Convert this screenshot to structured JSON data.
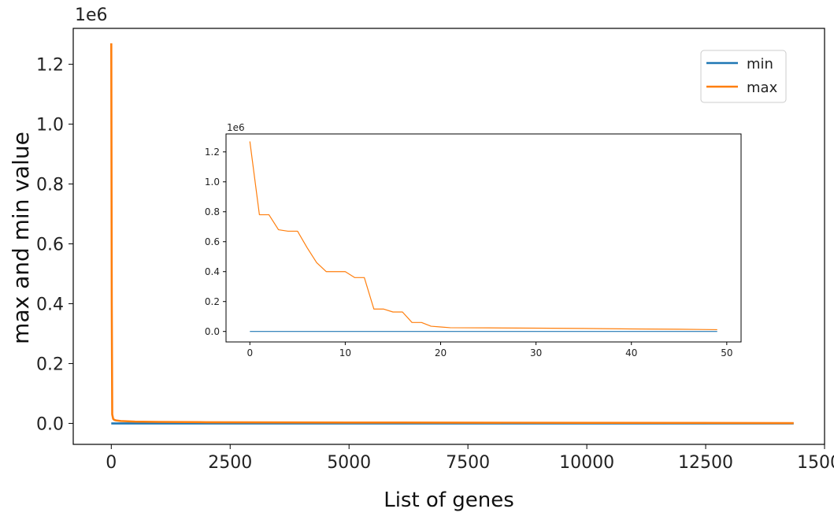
{
  "chart_data": [
    {
      "type": "line",
      "title": "",
      "xlabel": "List of genes",
      "ylabel": "max and min value",
      "y_offset_label": "1e6",
      "xlim": [
        -800,
        15000
      ],
      "ylim": [
        -0.07,
        1.32
      ],
      "xticks": [
        0,
        2500,
        5000,
        7500,
        10000,
        12500,
        15000
      ],
      "xtick_labels": [
        "0",
        "2500",
        "5000",
        "7500",
        "10000",
        "12500",
        "15000"
      ],
      "yticks": [
        0.0,
        0.2,
        0.4,
        0.6,
        0.8,
        1.0,
        1.2
      ],
      "ytick_labels": [
        "0.0",
        "0.2",
        "0.4",
        "0.6",
        "0.8",
        "1.0",
        "1.2"
      ],
      "legend": {
        "position": "top-right",
        "entries": [
          "min",
          "max"
        ]
      },
      "series": [
        {
          "name": "min",
          "color": "#1f77b4",
          "x": [
            0,
            14350
          ],
          "y": [
            0.0,
            0.0
          ]
        },
        {
          "name": "max",
          "color": "#ff7f0e",
          "x": [
            0,
            10,
            20,
            40,
            60,
            100,
            200,
            500,
            1000,
            2000,
            5000,
            10000,
            14350
          ],
          "y": [
            1.27,
            0.4,
            0.03,
            0.015,
            0.012,
            0.01,
            0.008,
            0.006,
            0.005,
            0.004,
            0.003,
            0.002,
            0.001
          ]
        }
      ]
    },
    {
      "type": "line",
      "title": "",
      "xlabel": "",
      "ylabel": "",
      "y_offset_label": "1e6",
      "xlim": [
        -2.5,
        51.5
      ],
      "ylim": [
        -0.07,
        1.32
      ],
      "xticks": [
        0,
        10,
        20,
        30,
        40,
        50
      ],
      "xtick_labels": [
        "0",
        "10",
        "20",
        "30",
        "40",
        "50"
      ],
      "yticks": [
        0.0,
        0.2,
        0.4,
        0.6,
        0.8,
        1.0,
        1.2
      ],
      "ytick_labels": [
        "0.0",
        "0.2",
        "0.4",
        "0.6",
        "0.8",
        "1.0",
        "1.2"
      ],
      "series": [
        {
          "name": "min",
          "color": "#1f77b4",
          "x": [
            0,
            49
          ],
          "y": [
            0.0,
            0.0
          ]
        },
        {
          "name": "max",
          "color": "#ff7f0e",
          "x": [
            0,
            1,
            2,
            3,
            4,
            5,
            6,
            7,
            8,
            9,
            10,
            11,
            12,
            13,
            14,
            15,
            16,
            17,
            18,
            19,
            20,
            21,
            25,
            30,
            35,
            40,
            45,
            49
          ],
          "y": [
            1.27,
            0.78,
            0.78,
            0.68,
            0.67,
            0.67,
            0.56,
            0.46,
            0.4,
            0.4,
            0.4,
            0.36,
            0.36,
            0.15,
            0.15,
            0.13,
            0.13,
            0.06,
            0.06,
            0.035,
            0.03,
            0.025,
            0.024,
            0.022,
            0.02,
            0.017,
            0.015,
            0.012
          ]
        }
      ]
    }
  ]
}
